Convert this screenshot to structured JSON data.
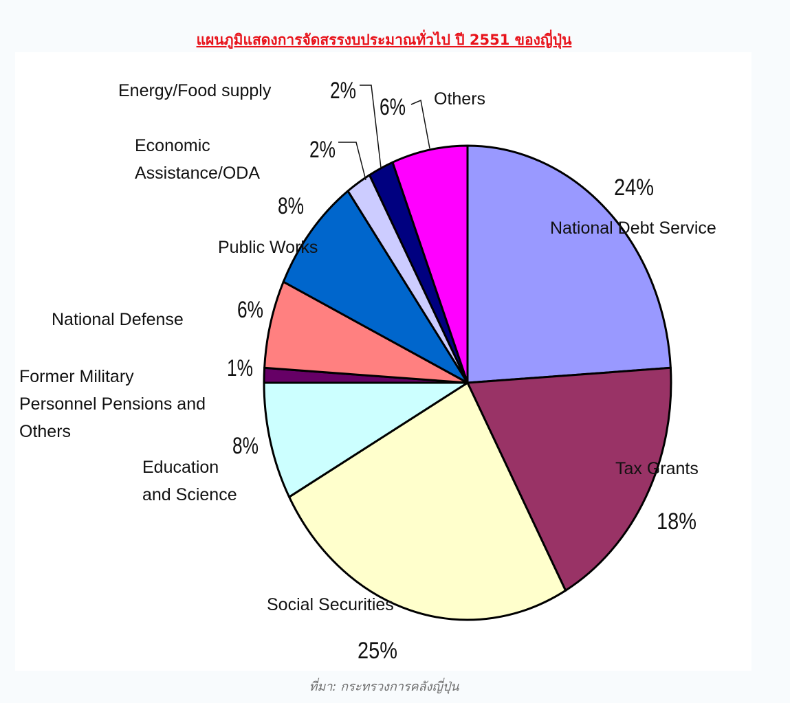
{
  "title": "แผนภูมิแสดงการจัดสรรงบประมาณทั่วไป ปี 2551 ของญี่ปุ่น",
  "source": "ที่มา: กระทรวงการคลังญี่ปุ่น",
  "chart_data": {
    "type": "pie",
    "title": "แผนภูมิแสดงการจัดสรรงบประมาณทั่วไป ปี 2551 ของญี่ปุ่น",
    "unit": "%",
    "slices": [
      {
        "label": "National Debt Service",
        "pct_label": "24%",
        "value": 24,
        "color": "#9999ff"
      },
      {
        "label": "Tax Grants",
        "pct_label": "18%",
        "value": 18,
        "color": "#993366"
      },
      {
        "label": "Social Securities",
        "pct_label": "25%",
        "value": 25,
        "color": "#ffffcc"
      },
      {
        "label": "Education and Science",
        "pct_label": "8%",
        "value": 8,
        "color": "#ccffff"
      },
      {
        "label": "Former Military Personnel Pensions and Others",
        "pct_label": "1%",
        "value": 1,
        "color": "#660066"
      },
      {
        "label": "National Defense",
        "pct_label": "6%",
        "value": 6,
        "color": "#ff8080"
      },
      {
        "label": "Public Works",
        "pct_label": "8%",
        "value": 8,
        "color": "#0066cc"
      },
      {
        "label": "Economic Assistance/ODA",
        "pct_label": "2%",
        "value": 2,
        "color": "#ccccff"
      },
      {
        "label": "Energy/Food supply",
        "pct_label": "2%",
        "value": 2,
        "color": "#000080"
      },
      {
        "label": "Others",
        "pct_label": "6%",
        "value": 6,
        "color": "#ff00ff"
      }
    ]
  }
}
